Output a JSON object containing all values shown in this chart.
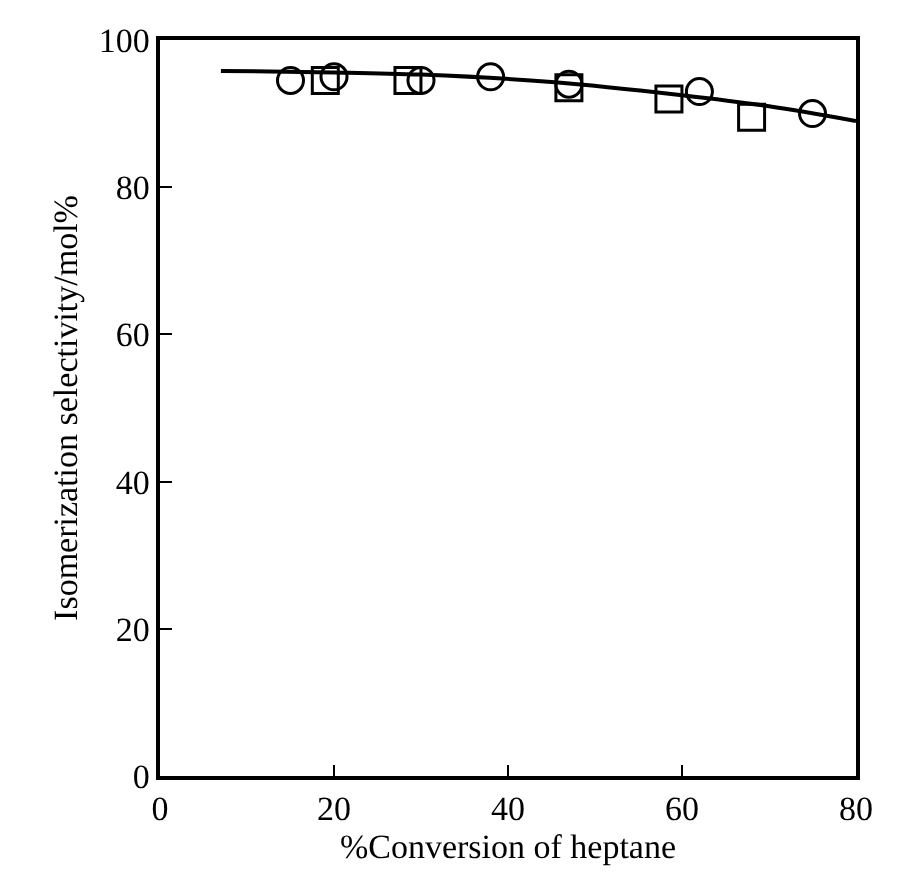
{
  "chart_data": {
    "type": "scatter",
    "xlabel": "%Conversion of heptane",
    "ylabel": "Isomerization selectivity/mol%",
    "xlim": [
      0,
      80
    ],
    "ylim": [
      0,
      100
    ],
    "xticks": [
      0,
      20,
      40,
      60,
      80
    ],
    "yticks": [
      0,
      20,
      40,
      60,
      80,
      100
    ],
    "series": [
      {
        "color": "#000000",
        "marker": "circle",
        "x": [
          15,
          20,
          30,
          38,
          47,
          62,
          75
        ],
        "values": [
          94.5,
          95,
          94.5,
          95,
          94,
          93,
          90
        ]
      },
      {
        "color": "#000000",
        "marker": "square",
        "x": [
          19,
          28.5,
          47,
          58.5,
          68
        ],
        "values": [
          94.5,
          94.5,
          93.5,
          92,
          89.5
        ]
      },
      {
        "type": "line",
        "color": "#000000",
        "marker": "none",
        "line_style": "solid",
        "x": [
          7,
          20,
          30,
          45,
          60,
          70,
          80
        ],
        "values": [
          95.8,
          95.6,
          95.3,
          94.3,
          92.5,
          91,
          89
        ]
      }
    ]
  }
}
